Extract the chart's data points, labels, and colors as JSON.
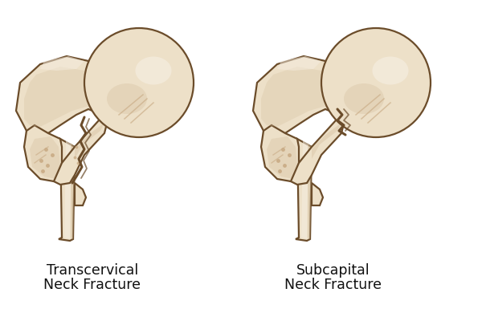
{
  "background_color": "#ffffff",
  "bone_fill": "#ede0c8",
  "bone_fill_light": "#f5ede0",
  "bone_fill_shadow": "#d4bf9e",
  "bone_fill_dark": "#c9ab85",
  "bone_outline": "#6b4c2a",
  "fracture_color": "#5a3d1e",
  "label1_line1": "Transcervical",
  "label1_line2": "Neck Fracture",
  "label2_line1": "Subcapital",
  "label2_line2": "Neck Fracture",
  "label_fontsize": 12.5,
  "label_color": "#111111",
  "fig_width": 6.0,
  "fig_height": 4.0,
  "dpi": 100
}
